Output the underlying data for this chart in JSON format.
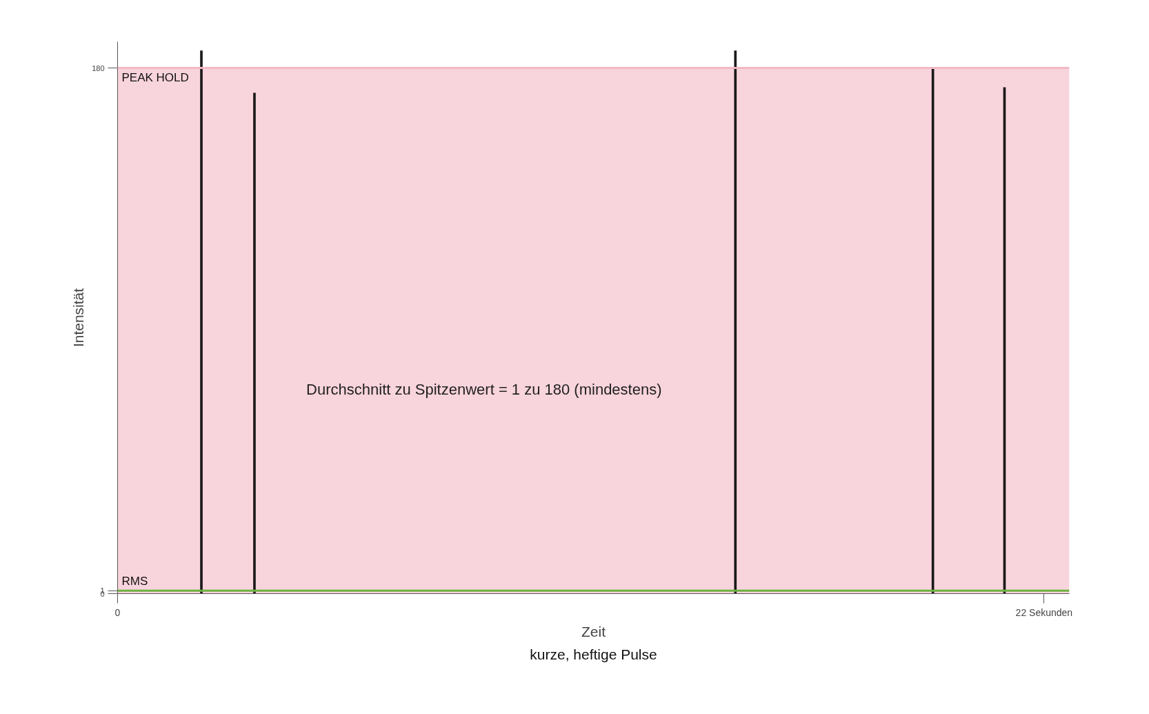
{
  "chart_data": {
    "type": "bar",
    "xlabel": "Zeit",
    "ylabel": "Intensität",
    "x": [
      1.99,
      3.25,
      14.67,
      19.36,
      21.06
    ],
    "series": [
      {
        "color": "#1a1a1a",
        "values": [
          186,
          171.5,
          186,
          180,
          173.4
        ]
      }
    ],
    "xlim": [
      0,
      22.6
    ],
    "ylim": [
      0,
      189
    ],
    "xticks": [
      0,
      {
        "value": 22,
        "label": "22 Sekunden"
      }
    ],
    "yticks": [
      0,
      1,
      180
    ],
    "bands": [
      {
        "axis": "y",
        "from": 0,
        "to": 180,
        "color": "#f8d4dc"
      }
    ],
    "ref_lines": [
      {
        "axis": "y",
        "value": 180,
        "label": "PEAK HOLD",
        "color": "#f2b8c6"
      },
      {
        "axis": "y",
        "value": 1,
        "label": "RMS",
        "color": "#6cb33f"
      }
    ],
    "annotations": [
      "Durchschnitt zu Spitzenwert = 1 zu 180 (mindestens)",
      "kurze, heftige Pulse"
    ],
    "grid": false
  }
}
